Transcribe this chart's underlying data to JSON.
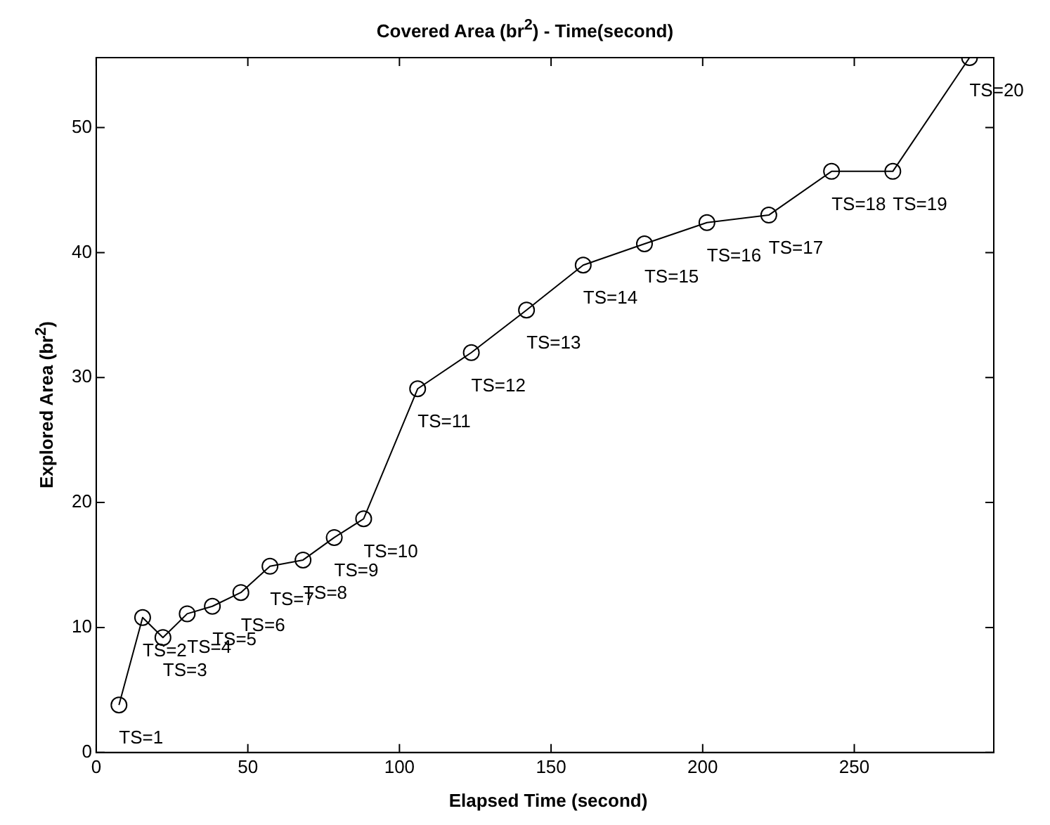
{
  "chart_data": {
    "type": "line",
    "title": "Covered Area (br$^{2}$) - Time(second)",
    "xlabel": "Elapsed Time (second)",
    "ylabel": "Explored Area (br$^{2}$)",
    "x": [
      7.5,
      15.3,
      22,
      30,
      38.3,
      47.7,
      57.3,
      68.2,
      78.5,
      88.2,
      106,
      123.7,
      141.9,
      160.6,
      180.8,
      201.4,
      221.8,
      242.5,
      262.7,
      288
    ],
    "series": [
      {
        "color": "#000000",
        "values": [
          3.8,
          10.8,
          9.2,
          11.1,
          11.7,
          12.8,
          14.9,
          15.4,
          17.2,
          18.7,
          29.1,
          32.0,
          35.4,
          39.0,
          40.7,
          42.4,
          43.0,
          46.5,
          46.5,
          55.6
        ]
      }
    ],
    "xlim": [
      0,
      296
    ],
    "xticks": [
      0,
      50,
      100,
      150,
      200,
      250
    ],
    "ylim": [
      0,
      55.6
    ],
    "yticks": [
      0,
      10,
      20,
      30,
      40,
      50
    ],
    "marker": "circle",
    "line_style": "solid",
    "grid": false,
    "legend": false,
    "annotations": [
      {
        "text": "TS=1",
        "x": 7.5,
        "y": 3.8
      },
      {
        "text": "TS=2",
        "x": 15.3,
        "y": 10.8
      },
      {
        "text": "TS=3",
        "x": 22,
        "y": 9.2
      },
      {
        "text": "TS=4",
        "x": 30,
        "y": 11.1
      },
      {
        "text": "TS=5",
        "x": 38.3,
        "y": 11.7
      },
      {
        "text": "TS=6",
        "x": 47.7,
        "y": 12.8
      },
      {
        "text": "TS=7",
        "x": 57.3,
        "y": 14.9
      },
      {
        "text": "TS=8",
        "x": 68.2,
        "y": 15.4
      },
      {
        "text": "TS=9",
        "x": 78.5,
        "y": 17.2
      },
      {
        "text": "TS=10",
        "x": 88.2,
        "y": 18.7
      },
      {
        "text": "TS=11",
        "x": 106,
        "y": 29.1
      },
      {
        "text": "TS=12",
        "x": 123.7,
        "y": 32.0
      },
      {
        "text": "TS=13",
        "x": 141.9,
        "y": 35.4
      },
      {
        "text": "TS=14",
        "x": 160.6,
        "y": 39.0
      },
      {
        "text": "TS=15",
        "x": 180.8,
        "y": 40.7
      },
      {
        "text": "TS=16",
        "x": 201.4,
        "y": 42.4
      },
      {
        "text": "TS=17",
        "x": 221.8,
        "y": 43.0
      },
      {
        "text": "TS=18",
        "x": 242.5,
        "y": 46.5
      },
      {
        "text": "TS=19",
        "x": 262.7,
        "y": 46.5
      },
      {
        "text": "TS=20",
        "x": 288,
        "y": 55.6
      }
    ]
  }
}
